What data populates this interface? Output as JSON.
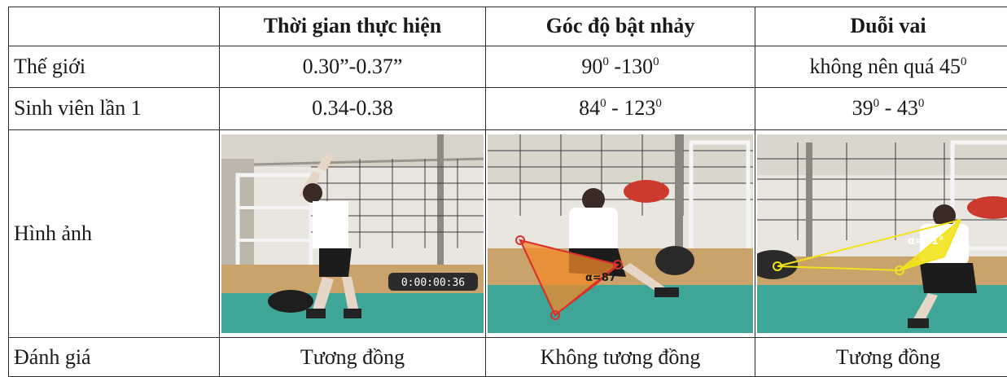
{
  "table": {
    "header": {
      "col1": "Thời gian thực hiện",
      "col2": "Góc độ bật nhảy",
      "col3": "Duỗi vai"
    },
    "rows": {
      "world": {
        "label": "Thế giới",
        "time": "0.30”-0.37”",
        "jump_angle": {
          "a": "90",
          "sep": " -130",
          "deg": "0"
        },
        "shoulder": {
          "text": "không nên quá 45",
          "deg": "0"
        }
      },
      "student": {
        "label": "Sinh viên lần 1",
        "time": "0.34-0.38",
        "jump_angle": {
          "a": "84",
          "sep": " - 123",
          "deg": "0"
        },
        "shoulder": {
          "a": "39",
          "sep": " - 43",
          "deg": "0"
        }
      },
      "images": {
        "label": "Hình ảnh",
        "photo1": {
          "timestamp": "0:00:00:36"
        },
        "photo2": {
          "angle_label": "α=87°"
        },
        "photo3": {
          "angle_label": "α=41°"
        }
      },
      "eval": {
        "label": "Đánh giá",
        "time": "Tương đồng",
        "jump_angle": "Không tương đồng",
        "shoulder": "Tương đồng"
      }
    }
  },
  "colors": {
    "border": "#2a2a2a",
    "floor_green": "#3fa596",
    "floor_wood": "#c9a36a",
    "angle_orange": "#f08a2a",
    "angle_yellow": "#f2e21c"
  }
}
